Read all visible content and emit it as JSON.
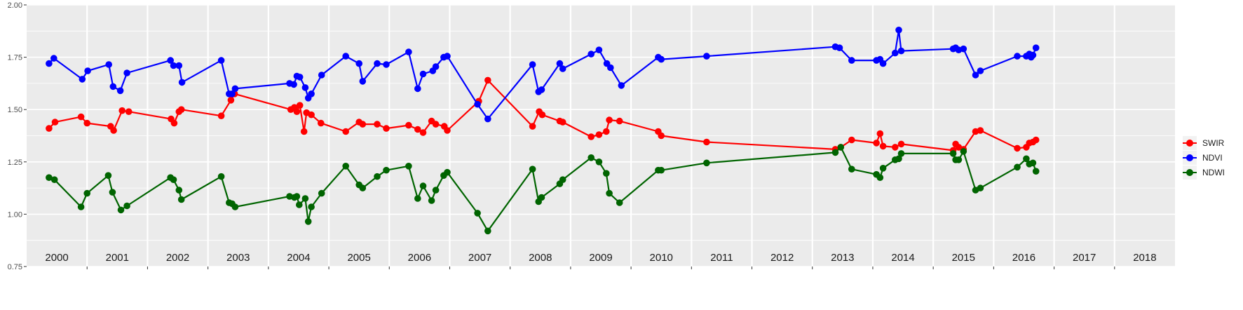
{
  "chart_data": {
    "type": "line",
    "title": "",
    "xlabel": "",
    "ylabel": "",
    "ylim": [
      0.75,
      2.0
    ],
    "yticks": [
      "0.75",
      "1.00",
      "1.25",
      "1.50",
      "1.75",
      "2.00"
    ],
    "xlim": [
      2000.0,
      2019.0
    ],
    "year_labels": [
      "2000",
      "2001",
      "2002",
      "2003",
      "2004",
      "2005",
      "2006",
      "2007",
      "2008",
      "2009",
      "2010",
      "2011",
      "2012",
      "2013",
      "2014",
      "2015",
      "2016",
      "2017",
      "2018"
    ],
    "grid": true,
    "legend_position": "right",
    "colors": {
      "SWIR": "#ff0000",
      "NDVI": "#0000ff",
      "NDWI": "#006400",
      "panel": "#ebebeb",
      "grid": "#ffffff"
    },
    "series": [
      {
        "name": "SWIR",
        "color": "#ff0000",
        "points": [
          [
            2000.37,
            1.41
          ],
          [
            2000.47,
            1.44
          ],
          [
            2000.9,
            1.465
          ],
          [
            2001.0,
            1.435
          ],
          [
            2001.39,
            1.42
          ],
          [
            2001.44,
            1.4
          ],
          [
            2001.58,
            1.495
          ],
          [
            2001.69,
            1.49
          ],
          [
            2002.39,
            1.455
          ],
          [
            2002.44,
            1.435
          ],
          [
            2002.52,
            1.49
          ],
          [
            2002.56,
            1.5
          ],
          [
            2003.22,
            1.47
          ],
          [
            2003.38,
            1.545
          ],
          [
            2003.44,
            1.575
          ],
          [
            2004.37,
            1.5
          ],
          [
            2004.43,
            1.51
          ],
          [
            2004.47,
            1.49
          ],
          [
            2004.52,
            1.52
          ],
          [
            2004.59,
            1.395
          ],
          [
            2004.63,
            1.485
          ],
          [
            2004.71,
            1.475
          ],
          [
            2004.87,
            1.435
          ],
          [
            2005.28,
            1.395
          ],
          [
            2005.5,
            1.44
          ],
          [
            2005.56,
            1.43
          ],
          [
            2005.8,
            1.43
          ],
          [
            2005.95,
            1.41
          ],
          [
            2006.32,
            1.425
          ],
          [
            2006.47,
            1.405
          ],
          [
            2006.56,
            1.39
          ],
          [
            2006.7,
            1.445
          ],
          [
            2006.77,
            1.43
          ],
          [
            2006.91,
            1.42
          ],
          [
            2006.96,
            1.4
          ],
          [
            2007.48,
            1.54
          ],
          [
            2007.63,
            1.64
          ],
          [
            2008.37,
            1.42
          ],
          [
            2008.48,
            1.49
          ],
          [
            2008.53,
            1.475
          ],
          [
            2008.82,
            1.445
          ],
          [
            2008.87,
            1.44
          ],
          [
            2009.34,
            1.37
          ],
          [
            2009.47,
            1.38
          ],
          [
            2009.59,
            1.395
          ],
          [
            2009.64,
            1.45
          ],
          [
            2009.81,
            1.445
          ],
          [
            2010.45,
            1.395
          ],
          [
            2010.5,
            1.375
          ],
          [
            2011.25,
            1.345
          ],
          [
            2013.38,
            1.31
          ],
          [
            2013.47,
            1.32
          ],
          [
            2013.65,
            1.355
          ],
          [
            2014.06,
            1.34
          ],
          [
            2014.12,
            1.385
          ],
          [
            2014.17,
            1.325
          ],
          [
            2014.37,
            1.32
          ],
          [
            2014.47,
            1.335
          ],
          [
            2015.33,
            1.305
          ],
          [
            2015.37,
            1.335
          ],
          [
            2015.42,
            1.32
          ],
          [
            2015.5,
            1.31
          ],
          [
            2015.7,
            1.395
          ],
          [
            2015.78,
            1.4
          ],
          [
            2016.39,
            1.315
          ],
          [
            2016.54,
            1.32
          ],
          [
            2016.59,
            1.34
          ],
          [
            2016.65,
            1.345
          ],
          [
            2016.7,
            1.355
          ]
        ]
      },
      {
        "name": "NDVI",
        "color": "#0000ff",
        "points": [
          [
            2000.37,
            1.72
          ],
          [
            2000.45,
            1.745
          ],
          [
            2000.92,
            1.645
          ],
          [
            2001.01,
            1.685
          ],
          [
            2001.36,
            1.715
          ],
          [
            2001.43,
            1.61
          ],
          [
            2001.55,
            1.59
          ],
          [
            2001.66,
            1.675
          ],
          [
            2002.38,
            1.735
          ],
          [
            2002.43,
            1.71
          ],
          [
            2002.52,
            1.71
          ],
          [
            2002.57,
            1.63
          ],
          [
            2003.22,
            1.735
          ],
          [
            2003.35,
            1.575
          ],
          [
            2003.4,
            1.575
          ],
          [
            2003.45,
            1.6
          ],
          [
            2004.35,
            1.625
          ],
          [
            2004.42,
            1.62
          ],
          [
            2004.47,
            1.66
          ],
          [
            2004.52,
            1.655
          ],
          [
            2004.61,
            1.605
          ],
          [
            2004.66,
            1.555
          ],
          [
            2004.71,
            1.575
          ],
          [
            2004.88,
            1.665
          ],
          [
            2005.28,
            1.755
          ],
          [
            2005.5,
            1.72
          ],
          [
            2005.56,
            1.635
          ],
          [
            2005.8,
            1.72
          ],
          [
            2005.95,
            1.715
          ],
          [
            2006.32,
            1.775
          ],
          [
            2006.47,
            1.6
          ],
          [
            2006.56,
            1.67
          ],
          [
            2006.72,
            1.685
          ],
          [
            2006.77,
            1.705
          ],
          [
            2006.9,
            1.75
          ],
          [
            2006.96,
            1.755
          ],
          [
            2007.46,
            1.525
          ],
          [
            2007.63,
            1.455
          ],
          [
            2008.37,
            1.715
          ],
          [
            2008.47,
            1.585
          ],
          [
            2008.52,
            1.595
          ],
          [
            2008.82,
            1.72
          ],
          [
            2008.87,
            1.695
          ],
          [
            2009.34,
            1.765
          ],
          [
            2009.47,
            1.785
          ],
          [
            2009.6,
            1.72
          ],
          [
            2009.66,
            1.7
          ],
          [
            2009.84,
            1.615
          ],
          [
            2010.45,
            1.75
          ],
          [
            2010.5,
            1.74
          ],
          [
            2011.25,
            1.755
          ],
          [
            2013.38,
            1.8
          ],
          [
            2013.45,
            1.795
          ],
          [
            2013.65,
            1.735
          ],
          [
            2014.06,
            1.735
          ],
          [
            2014.12,
            1.74
          ],
          [
            2014.17,
            1.72
          ],
          [
            2014.37,
            1.77
          ],
          [
            2014.43,
            1.88
          ],
          [
            2014.47,
            1.78
          ],
          [
            2015.33,
            1.79
          ],
          [
            2015.37,
            1.795
          ],
          [
            2015.42,
            1.785
          ],
          [
            2015.5,
            1.79
          ],
          [
            2015.7,
            1.665
          ],
          [
            2015.78,
            1.685
          ],
          [
            2016.39,
            1.755
          ],
          [
            2016.54,
            1.755
          ],
          [
            2016.59,
            1.765
          ],
          [
            2016.62,
            1.75
          ],
          [
            2016.65,
            1.76
          ],
          [
            2016.7,
            1.795
          ]
        ]
      },
      {
        "name": "NDWI",
        "color": "#006400",
        "points": [
          [
            2000.37,
            1.175
          ],
          [
            2000.46,
            1.165
          ],
          [
            2000.9,
            1.035
          ],
          [
            2001.0,
            1.1
          ],
          [
            2001.35,
            1.185
          ],
          [
            2001.42,
            1.105
          ],
          [
            2001.56,
            1.02
          ],
          [
            2001.66,
            1.04
          ],
          [
            2002.38,
            1.175
          ],
          [
            2002.43,
            1.165
          ],
          [
            2002.52,
            1.115
          ],
          [
            2002.56,
            1.07
          ],
          [
            2003.22,
            1.18
          ],
          [
            2003.35,
            1.055
          ],
          [
            2003.4,
            1.05
          ],
          [
            2003.45,
            1.035
          ],
          [
            2004.35,
            1.085
          ],
          [
            2004.43,
            1.08
          ],
          [
            2004.47,
            1.085
          ],
          [
            2004.51,
            1.045
          ],
          [
            2004.61,
            1.075
          ],
          [
            2004.66,
            0.965
          ],
          [
            2004.71,
            1.035
          ],
          [
            2004.88,
            1.1
          ],
          [
            2005.28,
            1.23
          ],
          [
            2005.5,
            1.14
          ],
          [
            2005.56,
            1.125
          ],
          [
            2005.8,
            1.18
          ],
          [
            2005.95,
            1.21
          ],
          [
            2006.32,
            1.23
          ],
          [
            2006.47,
            1.075
          ],
          [
            2006.56,
            1.135
          ],
          [
            2006.7,
            1.065
          ],
          [
            2006.77,
            1.115
          ],
          [
            2006.9,
            1.185
          ],
          [
            2006.96,
            1.2
          ],
          [
            2007.46,
            1.005
          ],
          [
            2007.63,
            0.92
          ],
          [
            2008.37,
            1.215
          ],
          [
            2008.47,
            1.06
          ],
          [
            2008.52,
            1.08
          ],
          [
            2008.82,
            1.145
          ],
          [
            2008.87,
            1.165
          ],
          [
            2009.34,
            1.27
          ],
          [
            2009.47,
            1.25
          ],
          [
            2009.59,
            1.195
          ],
          [
            2009.64,
            1.1
          ],
          [
            2009.81,
            1.055
          ],
          [
            2010.45,
            1.21
          ],
          [
            2010.5,
            1.21
          ],
          [
            2011.25,
            1.245
          ],
          [
            2013.38,
            1.295
          ],
          [
            2013.47,
            1.32
          ],
          [
            2013.65,
            1.215
          ],
          [
            2014.06,
            1.19
          ],
          [
            2014.12,
            1.175
          ],
          [
            2014.17,
            1.22
          ],
          [
            2014.37,
            1.26
          ],
          [
            2014.43,
            1.265
          ],
          [
            2014.47,
            1.29
          ],
          [
            2015.33,
            1.29
          ],
          [
            2015.37,
            1.26
          ],
          [
            2015.42,
            1.26
          ],
          [
            2015.5,
            1.3
          ],
          [
            2015.7,
            1.115
          ],
          [
            2015.78,
            1.125
          ],
          [
            2016.39,
            1.225
          ],
          [
            2016.54,
            1.265
          ],
          [
            2016.59,
            1.24
          ],
          [
            2016.65,
            1.245
          ],
          [
            2016.7,
            1.205
          ]
        ]
      }
    ],
    "legend": [
      "SWIR",
      "NDVI",
      "NDWI"
    ]
  }
}
